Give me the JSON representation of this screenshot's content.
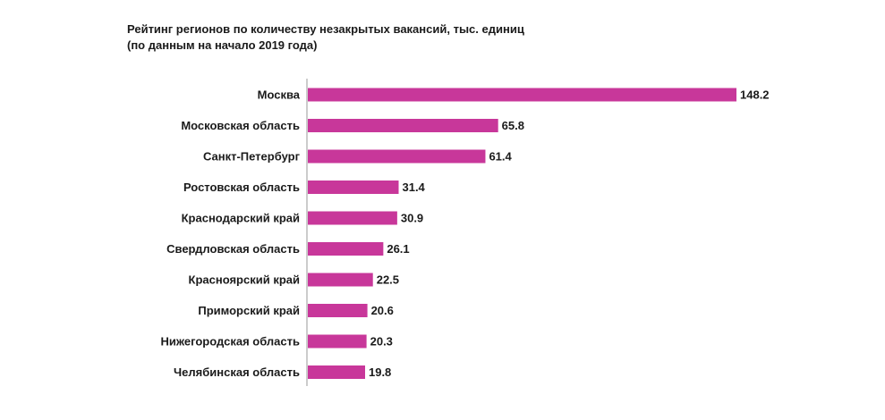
{
  "chart_data": {
    "type": "bar",
    "orientation": "horizontal",
    "title": "Рейтинг регионов по количеству незакрытых вакансий, тыс. единиц",
    "subtitle": "(по данным на начало 2019 года)",
    "categories": [
      "Москва",
      "Московская область",
      "Санкт-Петербург",
      "Ростовская область",
      "Краснодарский край",
      "Свердловская область",
      "Красноярский край",
      "Приморский край",
      "Нижегородская область",
      "Челябинская область"
    ],
    "values": [
      148.2,
      65.8,
      61.4,
      31.4,
      30.9,
      26.1,
      22.5,
      20.6,
      20.3,
      19.8
    ],
    "value_labels": [
      "148.2",
      "65.8",
      "61.4",
      "31.4",
      "30.9",
      "26.1",
      "22.5",
      "20.6",
      "20.3",
      "19.8"
    ],
    "xlim": [
      0,
      148.2
    ],
    "xlabel": "",
    "ylabel": "",
    "grid": false,
    "legend": "none",
    "bar_color": "#c8379a",
    "axis_color": "#9a9a9a"
  }
}
